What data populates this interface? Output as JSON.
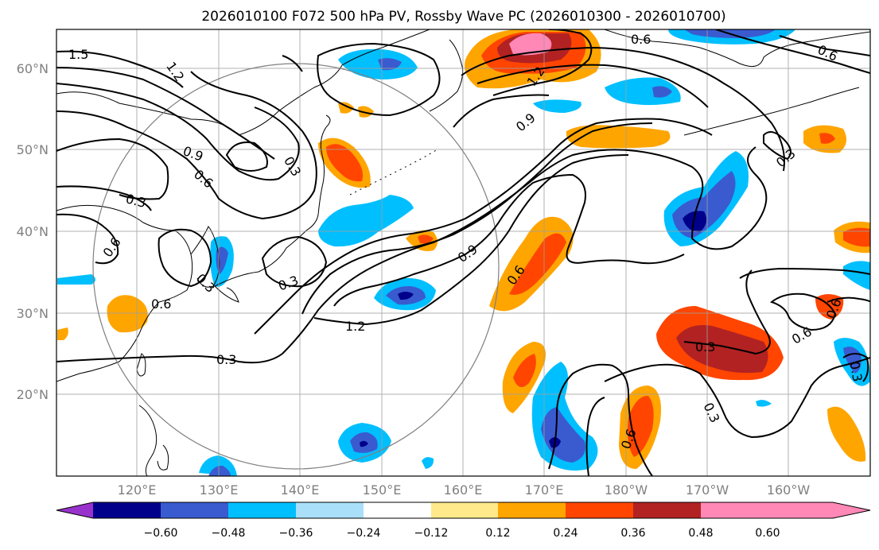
{
  "title": "2026010100 F072 500 hPa PV, Rossby Wave PC (2026010300 - 2026010700)",
  "lat_labels": [
    "60°N",
    "50°N",
    "40°N",
    "30°N",
    "20°N"
  ],
  "lon_labels": [
    "120°E",
    "130°E",
    "140°E",
    "150°E",
    "160°E",
    "170°E",
    "180°W",
    "170°W",
    "160°W"
  ],
  "colorbar": {
    "ticks": [
      "−0.60",
      "−0.48",
      "−0.36",
      "−0.24",
      "−0.12",
      "0.12",
      "0.24",
      "0.36",
      "0.48",
      "0.60"
    ],
    "colors": [
      "#9932cc",
      "#00008b",
      "#3a5bcf",
      "#00bfff",
      "#a9dff9",
      "#ffffff",
      "#ffe98a",
      "#ffa500",
      "#ff4500",
      "#b22222",
      "#ff88b6"
    ]
  },
  "contour_labels": [
    "1.5",
    "1.2",
    "0.6",
    "0.9",
    "0.6",
    "0.3",
    "0.6",
    "0.3",
    "0.6",
    "0.3",
    "0.3",
    "1.2",
    "0.9",
    "0.6",
    "1.2",
    "0.9",
    "0.6",
    "0.3",
    "0.3",
    "0.6",
    "0.6",
    "0.3",
    "0.3",
    "0.6",
    "0.3"
  ]
}
